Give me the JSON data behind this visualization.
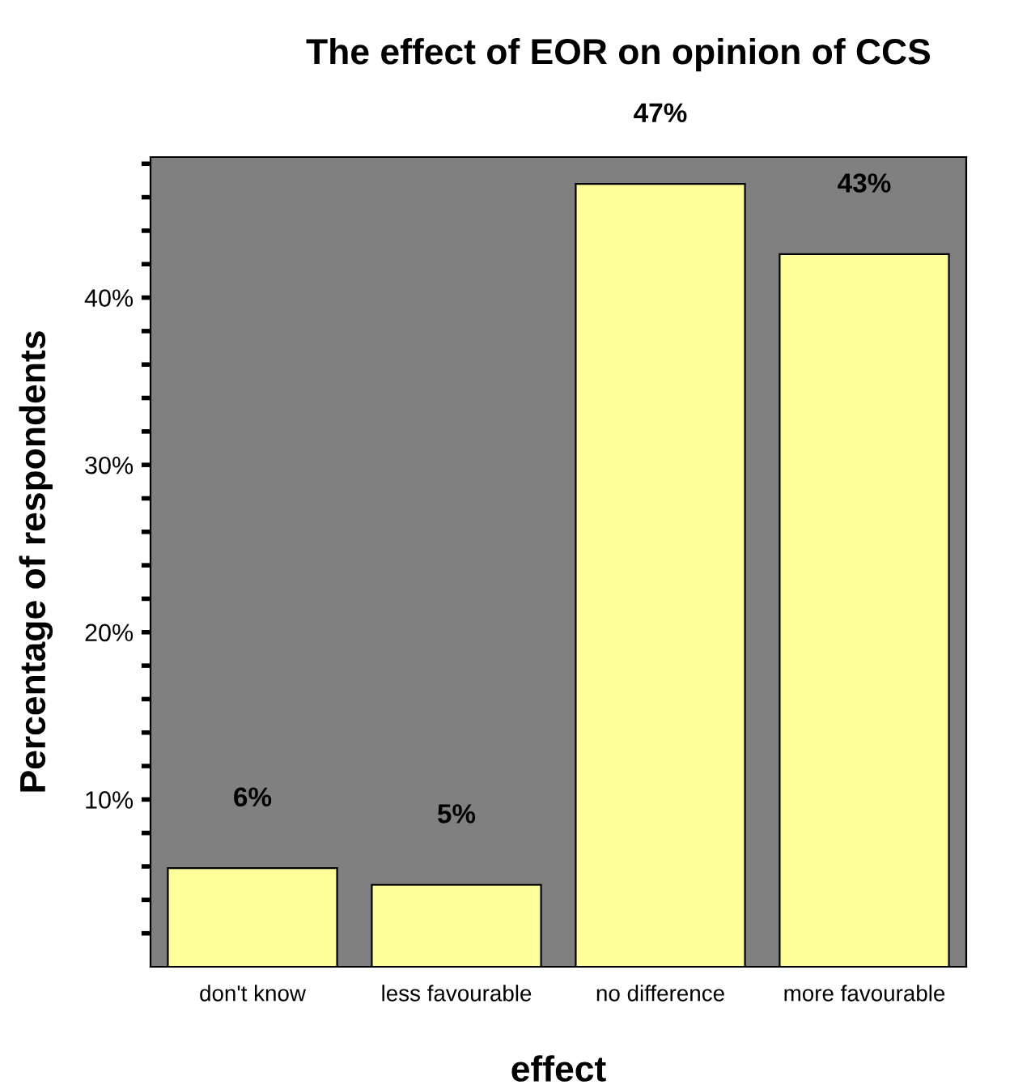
{
  "chart_data": {
    "type": "bar",
    "title": "The effect of EOR on opinion of CCS",
    "xlabel": "effect",
    "ylabel": "Percentage of respondents",
    "categories": [
      "don't know",
      "less favourable",
      "no difference",
      "more favourable"
    ],
    "values": [
      5.9,
      4.9,
      46.8,
      42.6
    ],
    "value_labels": [
      "6%",
      "5%",
      "47%",
      "43%"
    ],
    "color": "#ffff99",
    "ylim": [
      0,
      48.4
    ],
    "yticks": [
      {
        "value": 2,
        "label": null
      },
      {
        "value": 4,
        "label": null
      },
      {
        "value": 6,
        "label": null
      },
      {
        "value": 8,
        "label": null
      },
      {
        "value": 10,
        "label": "10%"
      },
      {
        "value": 12,
        "label": null
      },
      {
        "value": 14,
        "label": null
      },
      {
        "value": 16,
        "label": null
      },
      {
        "value": 18,
        "label": null
      },
      {
        "value": 20,
        "label": "20%"
      },
      {
        "value": 22,
        "label": null
      },
      {
        "value": 24,
        "label": null
      },
      {
        "value": 26,
        "label": null
      },
      {
        "value": 28,
        "label": null
      },
      {
        "value": 30,
        "label": "30%"
      },
      {
        "value": 32,
        "label": null
      },
      {
        "value": 34,
        "label": null
      },
      {
        "value": 36,
        "label": null
      },
      {
        "value": 38,
        "label": null
      },
      {
        "value": 40,
        "label": "40%"
      },
      {
        "value": 42,
        "label": null
      },
      {
        "value": 44,
        "label": null
      },
      {
        "value": 46,
        "label": null
      },
      {
        "value": 48,
        "label": null
      }
    ]
  }
}
